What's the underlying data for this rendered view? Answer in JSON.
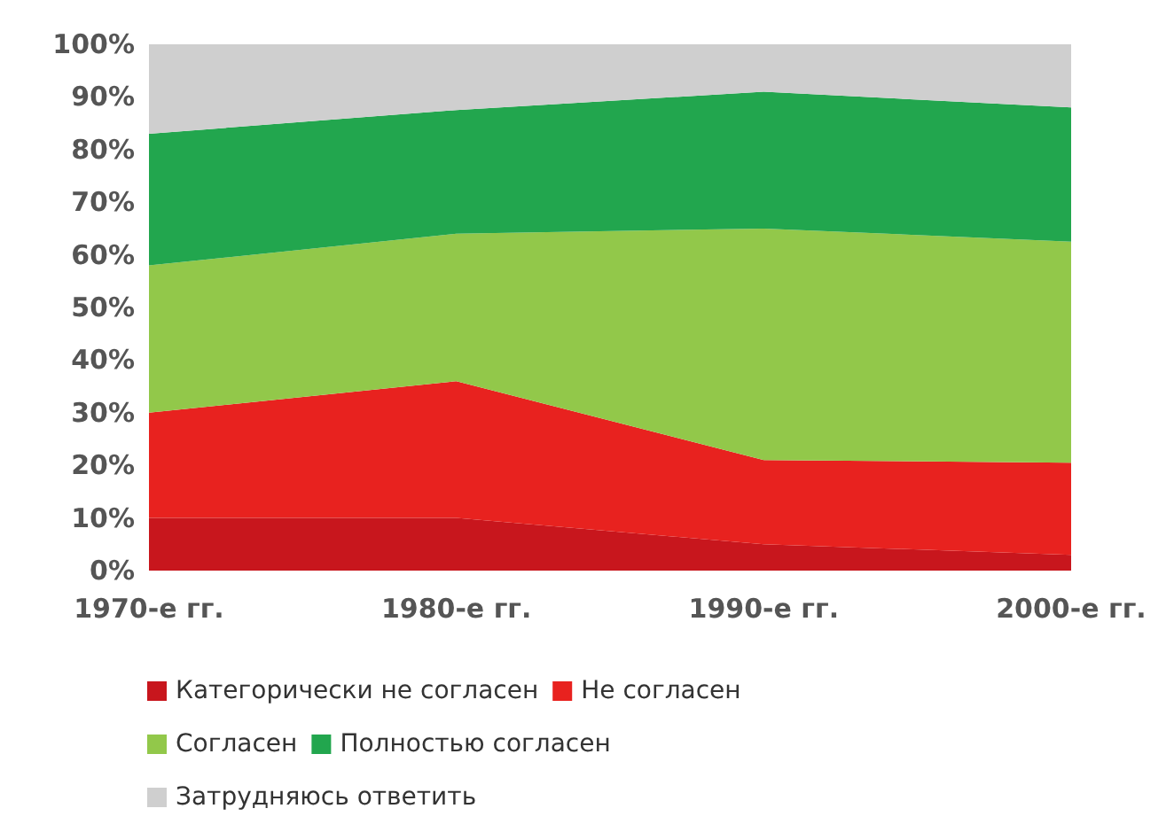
{
  "chart_data": {
    "type": "area",
    "stacked": true,
    "categories": [
      "1970-е гг.",
      "1980-е гг.",
      "1990-е гг.",
      "2000-е гг."
    ],
    "series": [
      {
        "name": "Категорически не согласен",
        "color": "#c8161d",
        "values": [
          10,
          10,
          5,
          3
        ]
      },
      {
        "name": "Не согласен",
        "color": "#e8221f",
        "values": [
          20,
          26,
          16,
          17.5
        ]
      },
      {
        "name": "Согласен",
        "color": "#92c84a",
        "values": [
          28,
          28,
          44,
          42
        ]
      },
      {
        "name": "Полностью согласен",
        "color": "#22a64e",
        "values": [
          25,
          23.5,
          26,
          25.5
        ]
      },
      {
        "name": "Затрудняюсь ответить",
        "color": "#cfcfcf",
        "values": [
          17,
          12.5,
          9,
          12
        ]
      }
    ],
    "ylim": [
      0,
      100
    ],
    "yticks": [
      {
        "value": 0,
        "label": "0%"
      },
      {
        "value": 10,
        "label": "10%"
      },
      {
        "value": 20,
        "label": "20%"
      },
      {
        "value": 30,
        "label": "30%"
      },
      {
        "value": 40,
        "label": "40%"
      },
      {
        "value": 50,
        "label": "50%"
      },
      {
        "value": 60,
        "label": "60%"
      },
      {
        "value": 70,
        "label": "70%"
      },
      {
        "value": 80,
        "label": "80%"
      },
      {
        "value": 90,
        "label": "90%"
      },
      {
        "value": 100,
        "label": "100%"
      }
    ],
    "grid": false,
    "legend": "bottom"
  }
}
